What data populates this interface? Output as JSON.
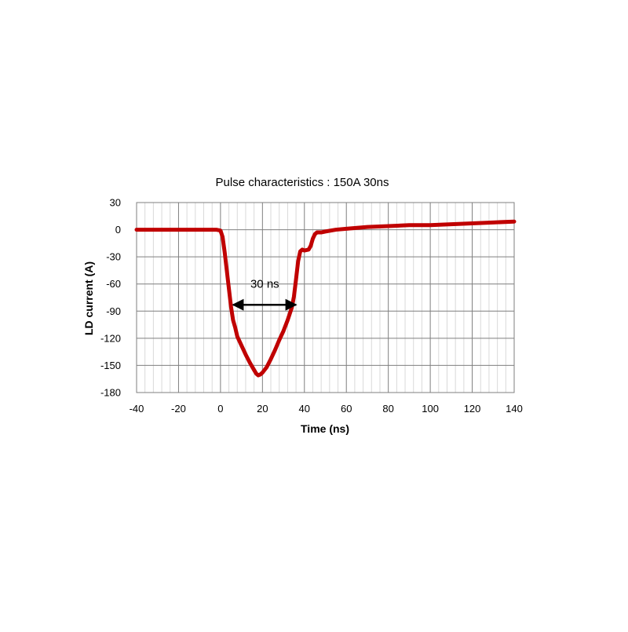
{
  "chart_data": {
    "type": "line",
    "title": "Pulse characteristics : 150A 30ns",
    "xlabel": "Time (ns)",
    "ylabel": "LD current (A)",
    "xlim": [
      -40,
      140
    ],
    "ylim": [
      -180,
      30
    ],
    "x_ticks": [
      -40,
      -20,
      0,
      20,
      40,
      60,
      80,
      100,
      120,
      140
    ],
    "y_ticks": [
      30,
      0,
      -30,
      -60,
      -90,
      -120,
      -150,
      -180
    ],
    "x_minor_step": 4,
    "grid": true,
    "legend": "none",
    "series": [
      {
        "color": "#c00000",
        "x": [
          -40,
          -35,
          -30,
          -25,
          -20,
          -15,
          -10,
          -5,
          -2,
          0,
          1,
          2,
          3,
          4,
          5,
          6,
          7,
          8,
          10,
          12,
          14,
          16,
          17,
          18,
          19,
          20,
          22,
          24,
          26,
          28,
          30,
          32,
          34,
          35,
          36,
          37,
          38,
          39,
          40,
          42,
          43,
          44,
          45,
          46,
          48,
          50,
          55,
          60,
          70,
          80,
          90,
          100,
          110,
          120,
          130,
          140
        ],
        "y": [
          0,
          0,
          0,
          0,
          0,
          0,
          0,
          0,
          0,
          -1,
          -8,
          -25,
          -45,
          -65,
          -85,
          -100,
          -108,
          -118,
          -128,
          -138,
          -147,
          -155,
          -159,
          -161,
          -160,
          -158,
          -152,
          -143,
          -133,
          -122,
          -112,
          -100,
          -86,
          -74,
          -55,
          -35,
          -24,
          -22,
          -23,
          -22,
          -18,
          -10,
          -5,
          -3,
          -3,
          -2,
          0,
          1,
          3,
          4,
          5,
          5,
          6,
          7,
          8,
          9
        ]
      }
    ],
    "annotations": [
      {
        "text": "30 ns",
        "x": 20,
        "y": -60,
        "arrow_from": [
          6,
          -83
        ],
        "arrow_to": [
          36,
          -83
        ]
      }
    ]
  }
}
